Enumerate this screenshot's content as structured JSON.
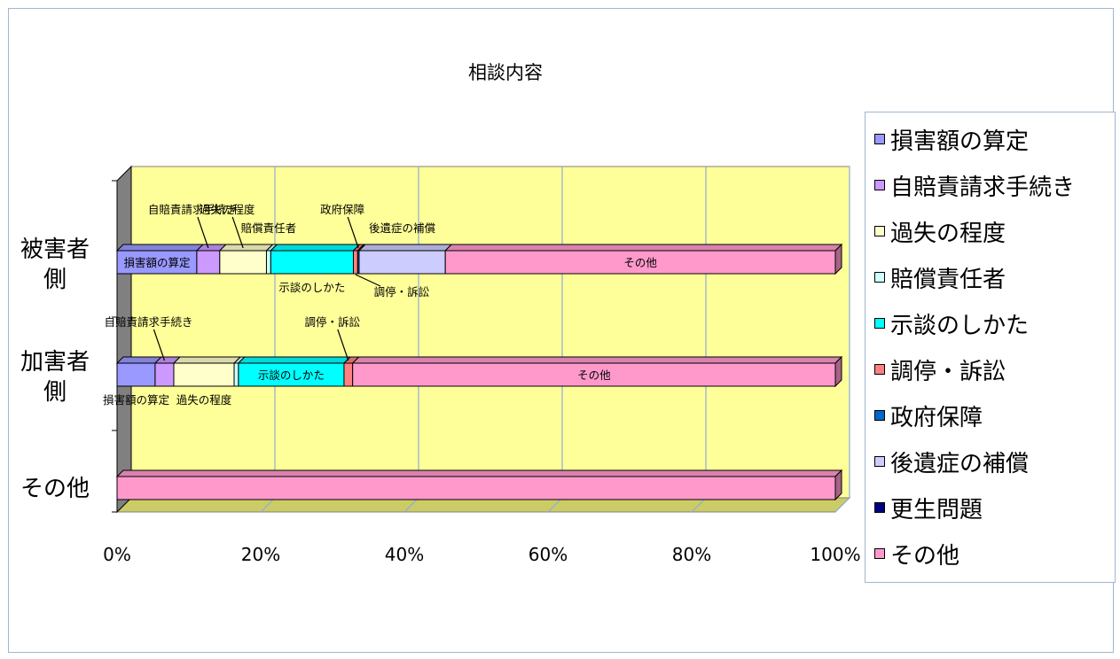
{
  "chart_data": {
    "type": "bar",
    "orientation": "horizontal",
    "stacked": "percent",
    "title": "相談内容",
    "categories": [
      "被害者側",
      "加害者側",
      "その他"
    ],
    "x_ticks": [
      "0%",
      "20%",
      "40%",
      "60%",
      "80%",
      "100%"
    ],
    "xlim": [
      0,
      100
    ],
    "grid": true,
    "legend_position": "right",
    "series": [
      {
        "name": "損害額の算定",
        "color": "#9999ff",
        "values": [
          11.1,
          5.3,
          0
        ]
      },
      {
        "name": "自賠責請求手続き",
        "color": "#cc99ff",
        "values": [
          3.2,
          2.6,
          0
        ]
      },
      {
        "name": "過失の程度",
        "color": "#ffffcc",
        "values": [
          6.5,
          8.4,
          0
        ]
      },
      {
        "name": "賠償責任者",
        "color": "#ccffff",
        "values": [
          0.6,
          0.6,
          0
        ]
      },
      {
        "name": "示談のしかた",
        "color": "#00ffff",
        "values": [
          11.5,
          14.7,
          0
        ]
      },
      {
        "name": "調停・訴訟",
        "color": "#ff8080",
        "values": [
          0.6,
          1.2,
          0
        ]
      },
      {
        "name": "政府保障",
        "color": "#0066cc",
        "values": [
          0.2,
          0,
          0
        ]
      },
      {
        "name": "後遺症の補償",
        "color": "#ccccff",
        "values": [
          12.0,
          0,
          0
        ]
      },
      {
        "name": "更生問題",
        "color": "#000080",
        "values": [
          0,
          0,
          0
        ]
      },
      {
        "name": "その他",
        "color": "#ff99cc",
        "values": [
          54.3,
          67.2,
          100
        ]
      }
    ],
    "annotations": [
      {
        "text": "損害額の算定",
        "category": 0,
        "series": 0,
        "placement": "inside"
      },
      {
        "text": "自賠責請求手続き",
        "category": 0,
        "series": 1,
        "placement": "callout-above"
      },
      {
        "text": "過失の程度",
        "category": 0,
        "series": 2,
        "placement": "callout-above"
      },
      {
        "text": "賠償責任者",
        "category": 0,
        "series": 3,
        "placement": "above"
      },
      {
        "text": "示談のしかた",
        "category": 0,
        "series": 4,
        "placement": "below"
      },
      {
        "text": "調停・訴訟",
        "category": 0,
        "series": 5,
        "placement": "callout-below"
      },
      {
        "text": "政府保障",
        "category": 0,
        "series": 6,
        "placement": "callout-above"
      },
      {
        "text": "後遺症の補償",
        "category": 0,
        "series": 7,
        "placement": "above"
      },
      {
        "text": "その他",
        "category": 0,
        "series": 9,
        "placement": "inside"
      },
      {
        "text": "自賠責請求手続き",
        "category": 1,
        "series": 1,
        "placement": "callout-above"
      },
      {
        "text": "調停・訴訟",
        "category": 1,
        "series": 5,
        "placement": "callout-above"
      },
      {
        "text": "損害額の算定",
        "category": 1,
        "series": 0,
        "placement": "below"
      },
      {
        "text": "過失の程度",
        "category": 1,
        "series": 2,
        "placement": "below"
      },
      {
        "text": "示談のしかた",
        "category": 1,
        "series": 4,
        "placement": "inside"
      },
      {
        "text": "その他",
        "category": 1,
        "series": 9,
        "placement": "inside"
      }
    ]
  }
}
